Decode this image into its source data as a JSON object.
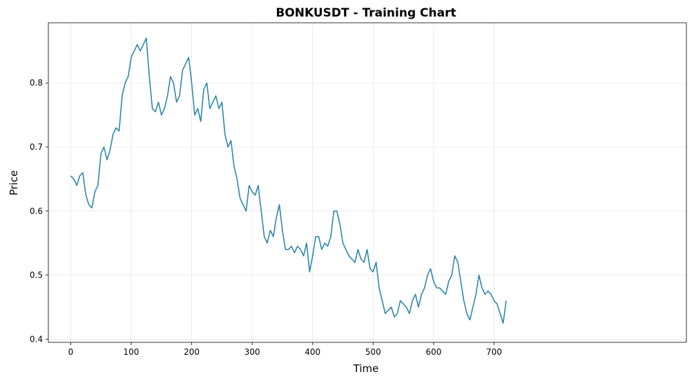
{
  "chart_data": {
    "type": "line",
    "title": "BONKUSDT - Training Chart",
    "xlabel": "Time",
    "ylabel": "Price",
    "xlim": [
      -37,
      1018
    ],
    "ylim": [
      0.395,
      0.894
    ],
    "xticks": [
      0,
      100,
      200,
      300,
      400,
      500,
      600,
      700
    ],
    "yticks": [
      0.4,
      0.5,
      0.6,
      0.7,
      0.8
    ],
    "ytick_labels": [
      "0.4",
      "0.5",
      "0.6",
      "0.7",
      "0.8"
    ],
    "grid": true,
    "line_color": "#2e86ab",
    "series": [
      {
        "x": [
          0,
          5,
          10,
          15,
          20,
          25,
          30,
          35,
          40,
          45,
          50,
          55,
          60,
          65,
          70,
          75,
          80,
          85,
          90,
          95,
          100,
          105,
          110,
          115,
          120,
          125,
          130,
          135,
          140,
          145,
          150,
          155,
          160,
          165,
          170,
          175,
          180,
          185,
          190,
          195,
          200,
          205,
          210,
          215,
          220,
          225,
          230,
          235,
          240,
          245,
          250,
          255,
          260,
          265,
          270,
          275,
          280,
          285,
          290,
          295,
          300,
          305,
          310,
          315,
          320,
          325,
          330,
          335,
          340,
          345,
          350,
          355,
          360,
          365,
          370,
          375,
          380,
          385,
          390,
          395,
          400,
          405,
          410,
          415,
          420,
          425,
          430,
          435,
          440,
          445,
          450,
          455,
          460,
          465,
          470,
          475,
          480,
          485,
          490,
          495,
          500,
          505,
          510,
          515,
          520,
          525,
          530,
          535,
          540,
          545,
          550,
          555,
          560,
          565,
          570,
          575,
          580,
          585,
          590,
          595,
          600,
          605,
          610,
          615,
          620,
          625,
          630,
          635,
          640,
          645,
          650,
          655,
          660,
          665,
          670,
          675,
          680,
          685,
          690,
          695,
          700,
          705,
          710,
          715,
          720
        ],
        "y": [
          0.655,
          0.65,
          0.64,
          0.655,
          0.66,
          0.625,
          0.61,
          0.605,
          0.63,
          0.64,
          0.69,
          0.7,
          0.68,
          0.695,
          0.72,
          0.73,
          0.725,
          0.78,
          0.8,
          0.81,
          0.84,
          0.85,
          0.86,
          0.85,
          0.86,
          0.87,
          0.81,
          0.76,
          0.755,
          0.77,
          0.75,
          0.76,
          0.78,
          0.81,
          0.8,
          0.77,
          0.78,
          0.82,
          0.83,
          0.84,
          0.8,
          0.75,
          0.76,
          0.74,
          0.79,
          0.8,
          0.76,
          0.77,
          0.78,
          0.76,
          0.77,
          0.72,
          0.7,
          0.71,
          0.67,
          0.65,
          0.62,
          0.61,
          0.6,
          0.64,
          0.63,
          0.625,
          0.64,
          0.6,
          0.56,
          0.55,
          0.57,
          0.56,
          0.59,
          0.61,
          0.57,
          0.54,
          0.54,
          0.545,
          0.535,
          0.545,
          0.54,
          0.53,
          0.55,
          0.505,
          0.53,
          0.56,
          0.56,
          0.54,
          0.55,
          0.545,
          0.56,
          0.6,
          0.6,
          0.58,
          0.55,
          0.54,
          0.53,
          0.525,
          0.52,
          0.54,
          0.525,
          0.52,
          0.54,
          0.51,
          0.505,
          0.52,
          0.48,
          0.46,
          0.44,
          0.445,
          0.45,
          0.435,
          0.44,
          0.46,
          0.455,
          0.45,
          0.44,
          0.46,
          0.47,
          0.45,
          0.47,
          0.48,
          0.5,
          0.51,
          0.49,
          0.48,
          0.48,
          0.475,
          0.47,
          0.49,
          0.5,
          0.53,
          0.52,
          0.49,
          0.46,
          0.44,
          0.43,
          0.45,
          0.47,
          0.5,
          0.48,
          0.47,
          0.475,
          0.47,
          0.46,
          0.455,
          0.44,
          0.425,
          0.46
        ]
      }
    ]
  }
}
